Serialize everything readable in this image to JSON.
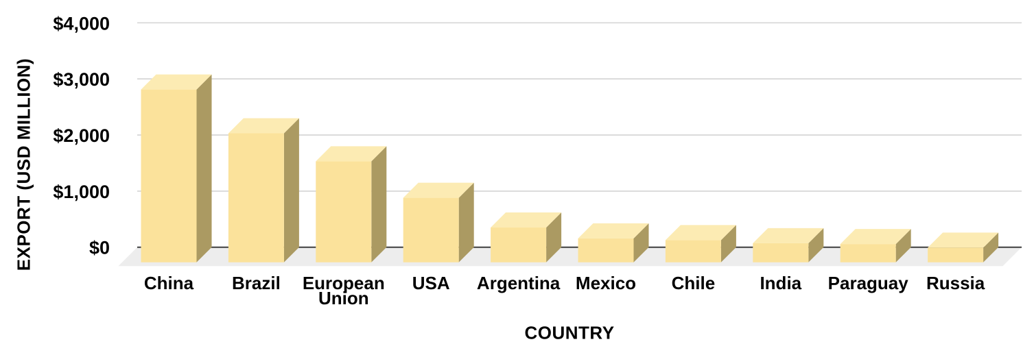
{
  "chart_data": {
    "type": "bar",
    "variant": "3d-column",
    "xlabel": "COUNTRY",
    "ylabel": "EXPORT (USD MILLION)",
    "categories": [
      "China",
      "Brazil",
      "European Union",
      "USA",
      "Argentina",
      "Mexico",
      "Chile",
      "India",
      "Paraguay",
      "Russia"
    ],
    "values": [
      3080,
      2300,
      1800,
      1150,
      620,
      425,
      395,
      340,
      325,
      260
    ],
    "ylim": [
      0,
      4000
    ],
    "ytick_step": 1000,
    "ytick_labels": [
      "$0",
      "$1,000",
      "$2,000",
      "$3,000",
      "$4,000"
    ],
    "grid": true,
    "legend": false
  },
  "colors": {
    "background": "#FFFFFF",
    "bar_front": "#FBE29B",
    "bar_top": "#FCEBB3",
    "bar_side": "#AB9A62",
    "floor": "#EDEDED",
    "gridline": "#D6D6D6",
    "axis_line": "#3F3F3F",
    "text": "#000000"
  }
}
